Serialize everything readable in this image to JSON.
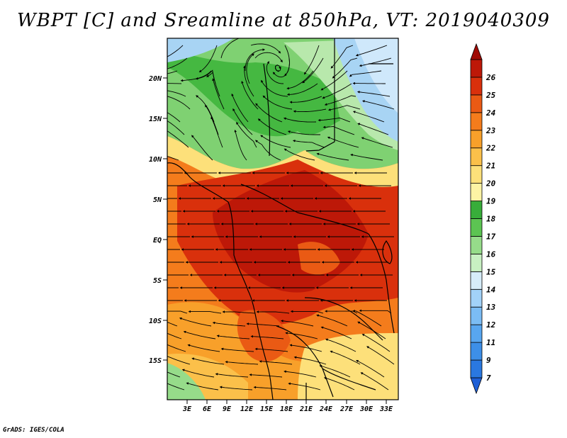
{
  "title": "WBPT [C] and Sreamline at 850hPa, VT: 2019040309",
  "footer": "GrADS: IGES/COLA",
  "lat_labels": [
    "20N",
    "15N",
    "10N",
    "5N",
    "EQ",
    "5S",
    "10S",
    "15S"
  ],
  "lon_labels": [
    "3E",
    "6E",
    "9E",
    "12E",
    "15E",
    "18E",
    "21E",
    "24E",
    "27E",
    "30E",
    "33E"
  ],
  "colorbar": {
    "labels": [
      "7",
      "9",
      "11",
      "12",
      "13",
      "14",
      "15",
      "16",
      "17",
      "18",
      "19",
      "20",
      "21",
      "22",
      "23",
      "24",
      "25",
      "26"
    ],
    "colors": [
      "#1e5fd6",
      "#2a78e0",
      "#3d8fe8",
      "#58a6f0",
      "#7bbcf4",
      "#a2d2f8",
      "#d6ecf9",
      "#c8f0c2",
      "#96dc8a",
      "#5cc452",
      "#38ad3a",
      "#fdf3a4",
      "#fde07a",
      "#fbc04a",
      "#f8a02a",
      "#f47c1c",
      "#ea5a14",
      "#d9300c",
      "#bd1808",
      "#a00a04"
    ]
  },
  "chart_data": {
    "type": "map",
    "variable": "WBPT [C]",
    "level": "850hPa",
    "valid_time": "2019040309",
    "lon_range": [
      0,
      35
    ],
    "lat_range": [
      -20,
      24
    ],
    "contour_levels": [
      7,
      9,
      11,
      12,
      13,
      14,
      15,
      16,
      17,
      18,
      19,
      20,
      21,
      22,
      23,
      24,
      25,
      26
    ]
  }
}
